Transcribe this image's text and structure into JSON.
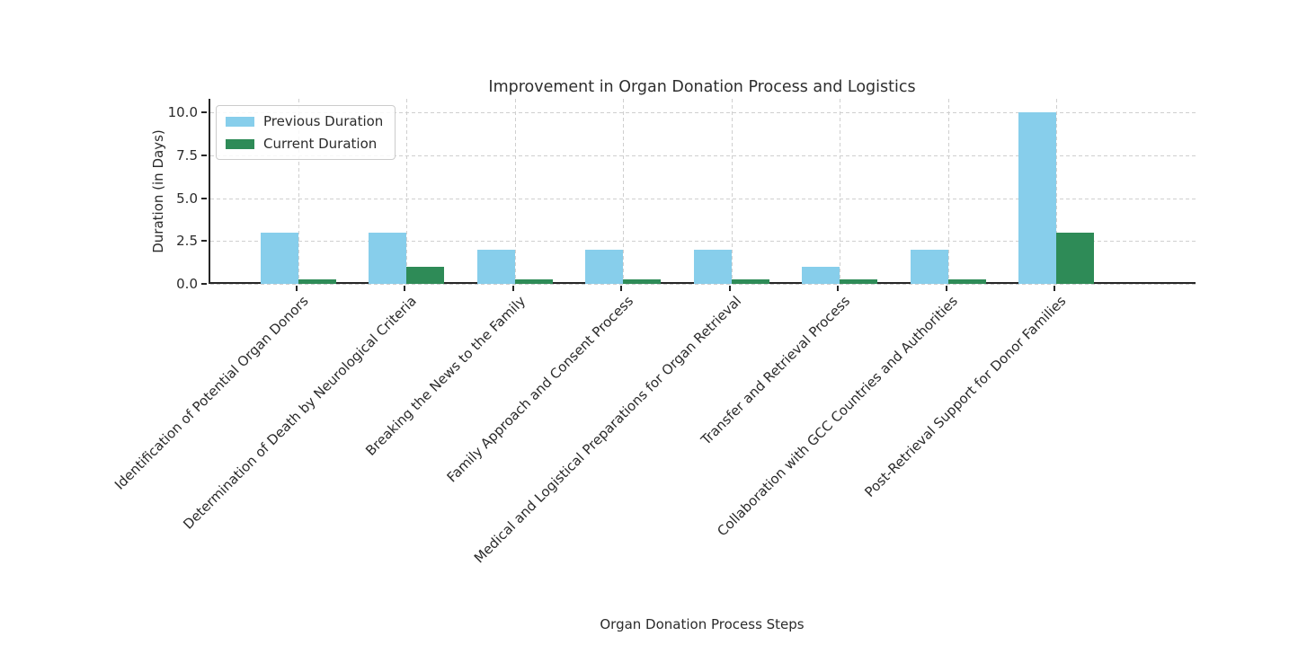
{
  "chart_data": {
    "type": "bar",
    "title": "Improvement in Organ Donation Process and Logistics",
    "xlabel": "Organ Donation Process Steps",
    "ylabel": "Duration (in Days)",
    "categories": [
      "Identification of Potential Organ Donors",
      "Determination of Death by Neurological Criteria",
      "Breaking the News to the Family",
      "Family Approach and Consent Process",
      "Medical and Logistical Preparations for Organ Retrieval",
      "Transfer and Retrieval Process",
      "Collaboration with GCC Countries and Authorities",
      "Post-Retrieval Support for Donor Families"
    ],
    "series": [
      {
        "name": "Previous Duration",
        "color": "#87CEEB",
        "values": [
          3,
          3,
          2,
          2,
          2,
          1,
          2,
          10
        ]
      },
      {
        "name": "Current Duration",
        "color": "#2E8B57",
        "values": [
          0.25,
          1,
          0.25,
          0.25,
          0.25,
          0.25,
          0.25,
          3
        ]
      }
    ],
    "yticks": [
      0,
      2.5,
      5,
      7.5,
      10
    ],
    "ytick_labels": [
      "0.0",
      "2.5",
      "5.0",
      "7.5",
      "10.0"
    ],
    "ylim": [
      0,
      10.79
    ],
    "grid": true,
    "grid_style": "dashed",
    "legend_position": "upper left"
  },
  "colors": {
    "previous_bar": "#87CEEB",
    "current_bar": "#2E8B57",
    "axis": "#262626",
    "grid": "#cfcfcf",
    "text": "#2b2b2b",
    "background": "#ffffff",
    "legend_border": "#cccccc"
  }
}
